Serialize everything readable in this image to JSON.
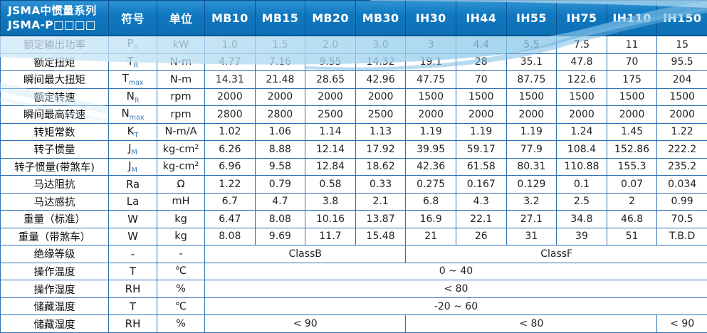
{
  "header": {
    "title_line1": "JSMA中惯量系列",
    "title_line2": "JSMA-P□□□□",
    "symbol_col": "符号",
    "unit_col": "单位",
    "models": [
      "MB10",
      "MB15",
      "MB20",
      "MB30",
      "IH30",
      "IH44",
      "IH55",
      "IH75",
      "IH110",
      "IH150"
    ]
  },
  "colors": {
    "header_blue": "#0d6fb4",
    "header_separator_blue": "#0a5390",
    "grid_border_blue": "#2e6fb2",
    "wave_light_blue": "#8ec9ea",
    "wave_pale_blue": "#cfe9f7",
    "text_dark": "#232327",
    "subscript_blue": "#3c76b5"
  },
  "rows": [
    {
      "label": "额定输出功率",
      "sym": "P",
      "sub": "R",
      "unit": "kW",
      "cells": [
        {
          "t": "1.0",
          "s": 1
        },
        {
          "t": "1.5",
          "s": 1
        },
        {
          "t": "2.0",
          "s": 1
        },
        {
          "t": "3.0",
          "s": 1
        },
        {
          "t": "3",
          "s": 1
        },
        {
          "t": "4.4",
          "s": 1
        },
        {
          "t": "5.5",
          "s": 1
        },
        {
          "t": "7.5",
          "s": 1
        },
        {
          "t": "11",
          "s": 1
        },
        {
          "t": "15",
          "s": 1
        }
      ]
    },
    {
      "label": "额定扭矩",
      "sym": "T",
      "sub": "R",
      "unit": "N-m",
      "cells": [
        {
          "t": "4.77",
          "s": 1
        },
        {
          "t": "7.16",
          "s": 1
        },
        {
          "t": "9.55",
          "s": 1
        },
        {
          "t": "14.32",
          "s": 1
        },
        {
          "t": "19.1",
          "s": 1
        },
        {
          "t": "28",
          "s": 1
        },
        {
          "t": "35.1",
          "s": 1
        },
        {
          "t": "47.8",
          "s": 1
        },
        {
          "t": "70",
          "s": 1
        },
        {
          "t": "95.5",
          "s": 1
        }
      ]
    },
    {
      "label": "瞬间最大扭矩",
      "sym": "T",
      "sub": "max",
      "unit": "N-m",
      "cells": [
        {
          "t": "14.31",
          "s": 1
        },
        {
          "t": "21.48",
          "s": 1
        },
        {
          "t": "28.65",
          "s": 1
        },
        {
          "t": "42.96",
          "s": 1
        },
        {
          "t": "47.75",
          "s": 1
        },
        {
          "t": "70",
          "s": 1
        },
        {
          "t": "87.75",
          "s": 1
        },
        {
          "t": "122.6",
          "s": 1
        },
        {
          "t": "175",
          "s": 1
        },
        {
          "t": "204",
          "s": 1
        }
      ]
    },
    {
      "label": "额定转速",
      "sym": "N",
      "sub": "R",
      "unit": "rpm",
      "cells": [
        {
          "t": "2000",
          "s": 1
        },
        {
          "t": "2000",
          "s": 1
        },
        {
          "t": "2000",
          "s": 1
        },
        {
          "t": "2000",
          "s": 1
        },
        {
          "t": "1500",
          "s": 1
        },
        {
          "t": "1500",
          "s": 1
        },
        {
          "t": "1500",
          "s": 1
        },
        {
          "t": "1500",
          "s": 1
        },
        {
          "t": "1500",
          "s": 1
        },
        {
          "t": "1500",
          "s": 1
        }
      ]
    },
    {
      "label": "瞬间最高转速",
      "sym": "N",
      "sub": "max",
      "unit": "rpm",
      "cells": [
        {
          "t": "2800",
          "s": 1
        },
        {
          "t": "2800",
          "s": 1
        },
        {
          "t": "2500",
          "s": 1
        },
        {
          "t": "2500",
          "s": 1
        },
        {
          "t": "2000",
          "s": 1
        },
        {
          "t": "2000",
          "s": 1
        },
        {
          "t": "2000",
          "s": 1
        },
        {
          "t": "2000",
          "s": 1
        },
        {
          "t": "2000",
          "s": 1
        },
        {
          "t": "2000",
          "s": 1
        }
      ]
    },
    {
      "label": "转矩常数",
      "sym": "K",
      "sub": "T",
      "unit": "N-m/A",
      "cells": [
        {
          "t": "1.02",
          "s": 1
        },
        {
          "t": "1.06",
          "s": 1
        },
        {
          "t": "1.14",
          "s": 1
        },
        {
          "t": "1.13",
          "s": 1
        },
        {
          "t": "1.19",
          "s": 1
        },
        {
          "t": "1.19",
          "s": 1
        },
        {
          "t": "1.19",
          "s": 1
        },
        {
          "t": "1.24",
          "s": 1
        },
        {
          "t": "1.45",
          "s": 1
        },
        {
          "t": "1.22",
          "s": 1
        }
      ]
    },
    {
      "label": "转子惯量",
      "sym": "J",
      "sub": "M",
      "unit": "kg-cm²",
      "cells": [
        {
          "t": "6.26",
          "s": 1
        },
        {
          "t": "8.88",
          "s": 1
        },
        {
          "t": "12.14",
          "s": 1
        },
        {
          "t": "17.92",
          "s": 1
        },
        {
          "t": "39.95",
          "s": 1
        },
        {
          "t": "59.17",
          "s": 1
        },
        {
          "t": "77.9",
          "s": 1
        },
        {
          "t": "108.4",
          "s": 1
        },
        {
          "t": "152.86",
          "s": 1
        },
        {
          "t": "222.2",
          "s": 1
        }
      ]
    },
    {
      "label": "转子惯量(带煞车)",
      "sym": "J",
      "sub": "M",
      "unit": "kg-cm²",
      "cells": [
        {
          "t": "6.96",
          "s": 1
        },
        {
          "t": "9.58",
          "s": 1
        },
        {
          "t": "12.84",
          "s": 1
        },
        {
          "t": "18.62",
          "s": 1
        },
        {
          "t": "42.36",
          "s": 1
        },
        {
          "t": "61.58",
          "s": 1
        },
        {
          "t": "80.31",
          "s": 1
        },
        {
          "t": "110.88",
          "s": 1
        },
        {
          "t": "155.3",
          "s": 1
        },
        {
          "t": "235.2",
          "s": 1
        }
      ]
    },
    {
      "label": "马达阻抗",
      "sym": "Ra",
      "sub": "",
      "unit": "Ω",
      "cells": [
        {
          "t": "1.22",
          "s": 1
        },
        {
          "t": "0.79",
          "s": 1
        },
        {
          "t": "0.58",
          "s": 1
        },
        {
          "t": "0.33",
          "s": 1
        },
        {
          "t": "0.275",
          "s": 1
        },
        {
          "t": "0.167",
          "s": 1
        },
        {
          "t": "0.129",
          "s": 1
        },
        {
          "t": "0.1",
          "s": 1
        },
        {
          "t": "0.07",
          "s": 1
        },
        {
          "t": "0.034",
          "s": 1
        }
      ]
    },
    {
      "label": "马达感抗",
      "sym": "La",
      "sub": "",
      "unit": "mH",
      "cells": [
        {
          "t": "6.7",
          "s": 1
        },
        {
          "t": "4.7",
          "s": 1
        },
        {
          "t": "3.8",
          "s": 1
        },
        {
          "t": "2.1",
          "s": 1
        },
        {
          "t": "6.8",
          "s": 1
        },
        {
          "t": "4.3",
          "s": 1
        },
        {
          "t": "3.2",
          "s": 1
        },
        {
          "t": "2.5",
          "s": 1
        },
        {
          "t": "2",
          "s": 1
        },
        {
          "t": "0.99",
          "s": 1
        }
      ]
    },
    {
      "label": "重量（标准）",
      "sym": "W",
      "sub": "",
      "unit": "kg",
      "cells": [
        {
          "t": "6.47",
          "s": 1
        },
        {
          "t": "8.08",
          "s": 1
        },
        {
          "t": "10.16",
          "s": 1
        },
        {
          "t": "13.87",
          "s": 1
        },
        {
          "t": "16.9",
          "s": 1
        },
        {
          "t": "22.1",
          "s": 1
        },
        {
          "t": "27.1",
          "s": 1
        },
        {
          "t": "34.8",
          "s": 1
        },
        {
          "t": "46.8",
          "s": 1
        },
        {
          "t": "70.5",
          "s": 1
        }
      ]
    },
    {
      "label": "重量（带煞车）",
      "sym": "W",
      "sub": "",
      "unit": "kg",
      "cells": [
        {
          "t": "8.08",
          "s": 1
        },
        {
          "t": "9.69",
          "s": 1
        },
        {
          "t": "11.7",
          "s": 1
        },
        {
          "t": "15.48",
          "s": 1
        },
        {
          "t": "21",
          "s": 1
        },
        {
          "t": "26",
          "s": 1
        },
        {
          "t": "31",
          "s": 1
        },
        {
          "t": "39",
          "s": 1
        },
        {
          "t": "51",
          "s": 1
        },
        {
          "t": "T.B.D",
          "s": 1
        }
      ]
    },
    {
      "label": "绝缘等级",
      "sym": "-",
      "sub": "",
      "unit": "-",
      "cells": [
        {
          "t": "ClassB",
          "s": 4
        },
        {
          "t": "ClassF",
          "s": 6
        }
      ]
    },
    {
      "label": "操作温度",
      "sym": "T",
      "sub": "",
      "unit": "℃",
      "cells": [
        {
          "t": "0 ~ 40",
          "s": 10
        }
      ]
    },
    {
      "label": "操作湿度",
      "sym": "RH",
      "sub": "",
      "unit": "%",
      "cells": [
        {
          "t": "< 80",
          "s": 10
        }
      ]
    },
    {
      "label": "储藏温度",
      "sym": "T",
      "sub": "",
      "unit": "℃",
      "cells": [
        {
          "t": "-20 ~ 60",
          "s": 10
        }
      ]
    },
    {
      "label": "储藏湿度",
      "sym": "RH",
      "sub": "",
      "unit": "%",
      "cells": [
        {
          "t": "< 90",
          "s": 4
        },
        {
          "t": "< 80",
          "s": 5
        },
        {
          "t": "< 90",
          "s": 1
        }
      ]
    }
  ]
}
